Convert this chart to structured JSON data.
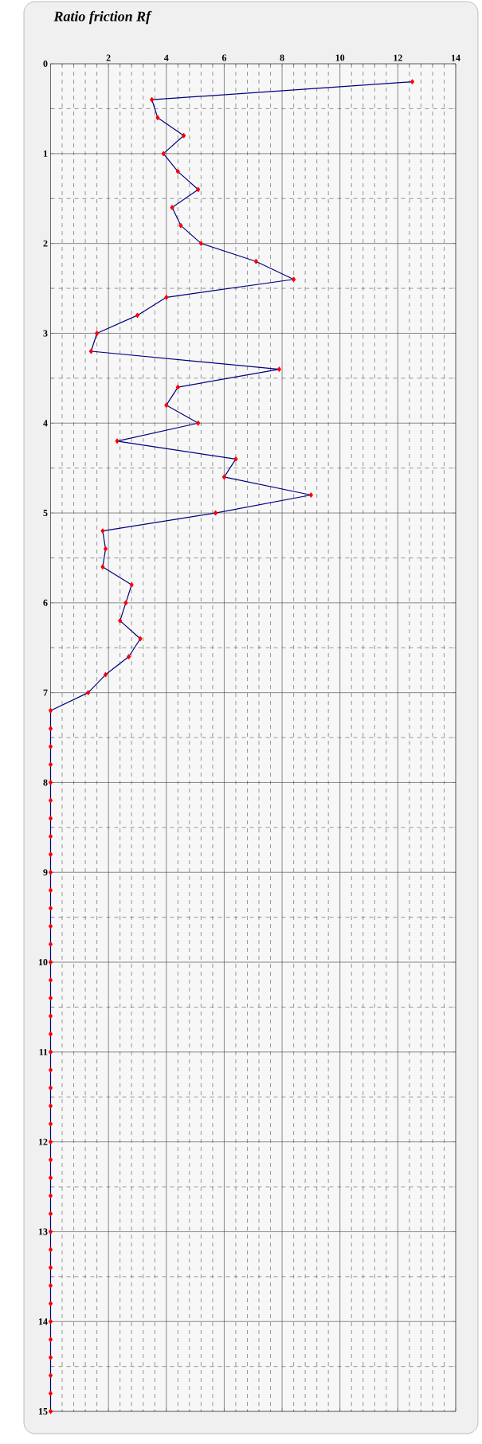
{
  "chart_data": {
    "type": "line",
    "title": "Ratio friction   Rf",
    "orientation": "horizontal",
    "x": [
      0.2,
      0.4,
      0.6,
      0.8,
      1.0,
      1.2,
      1.4,
      1.6,
      1.8,
      2.0,
      2.2,
      2.4,
      2.6,
      2.8,
      3.0,
      3.2,
      3.4,
      3.6,
      3.8,
      4.0,
      4.2,
      4.4,
      4.6,
      4.8,
      5.0,
      5.2,
      5.4,
      5.6,
      5.8,
      6.0,
      6.2,
      6.4,
      6.6,
      6.8,
      7.0,
      7.2,
      7.4,
      7.6,
      7.8,
      8.0,
      8.2,
      8.4,
      8.6,
      8.8,
      9.0,
      9.2,
      9.4,
      9.6,
      9.8,
      10.0,
      10.2,
      10.4,
      10.6,
      10.8,
      11.0,
      11.2,
      11.4,
      11.6,
      11.8,
      12.0,
      12.2,
      12.4,
      12.6,
      12.8,
      13.0,
      13.2,
      13.4,
      13.6,
      13.8,
      14.0,
      14.2,
      14.4,
      14.6,
      14.8,
      15.0
    ],
    "series": [
      {
        "color": "#000080",
        "values": [
          12.5,
          3.5,
          3.7,
          4.6,
          3.9,
          4.4,
          5.1,
          4.2,
          4.5,
          5.2,
          7.1,
          8.4,
          4.0,
          3.0,
          1.6,
          1.4,
          7.9,
          4.4,
          4.0,
          5.1,
          2.3,
          6.4,
          6.0,
          9.0,
          5.7,
          1.8,
          1.9,
          1.8,
          2.8,
          2.6,
          2.4,
          3.1,
          2.7,
          1.9,
          1.3,
          0,
          0,
          0,
          0,
          0,
          0,
          0,
          0,
          0,
          0,
          0,
          0,
          0,
          0,
          0,
          0,
          0,
          0,
          0,
          0,
          0,
          0,
          0,
          0,
          0,
          0,
          0,
          0,
          0,
          0,
          0,
          0,
          0,
          0,
          0,
          0,
          0,
          0,
          0,
          0
        ]
      }
    ],
    "xlim": [
      0,
      14
    ],
    "xticks": [
      {
        "value": 0,
        "label": null
      },
      2,
      4,
      6,
      8,
      10,
      12,
      14
    ],
    "ylim": [
      15,
      0
    ],
    "yticks": [
      0,
      1,
      2,
      3,
      4,
      5,
      6,
      7,
      8,
      9,
      10,
      11,
      12,
      13,
      14,
      15
    ],
    "grid": true,
    "marker": "diamond",
    "line_style": "solid"
  }
}
